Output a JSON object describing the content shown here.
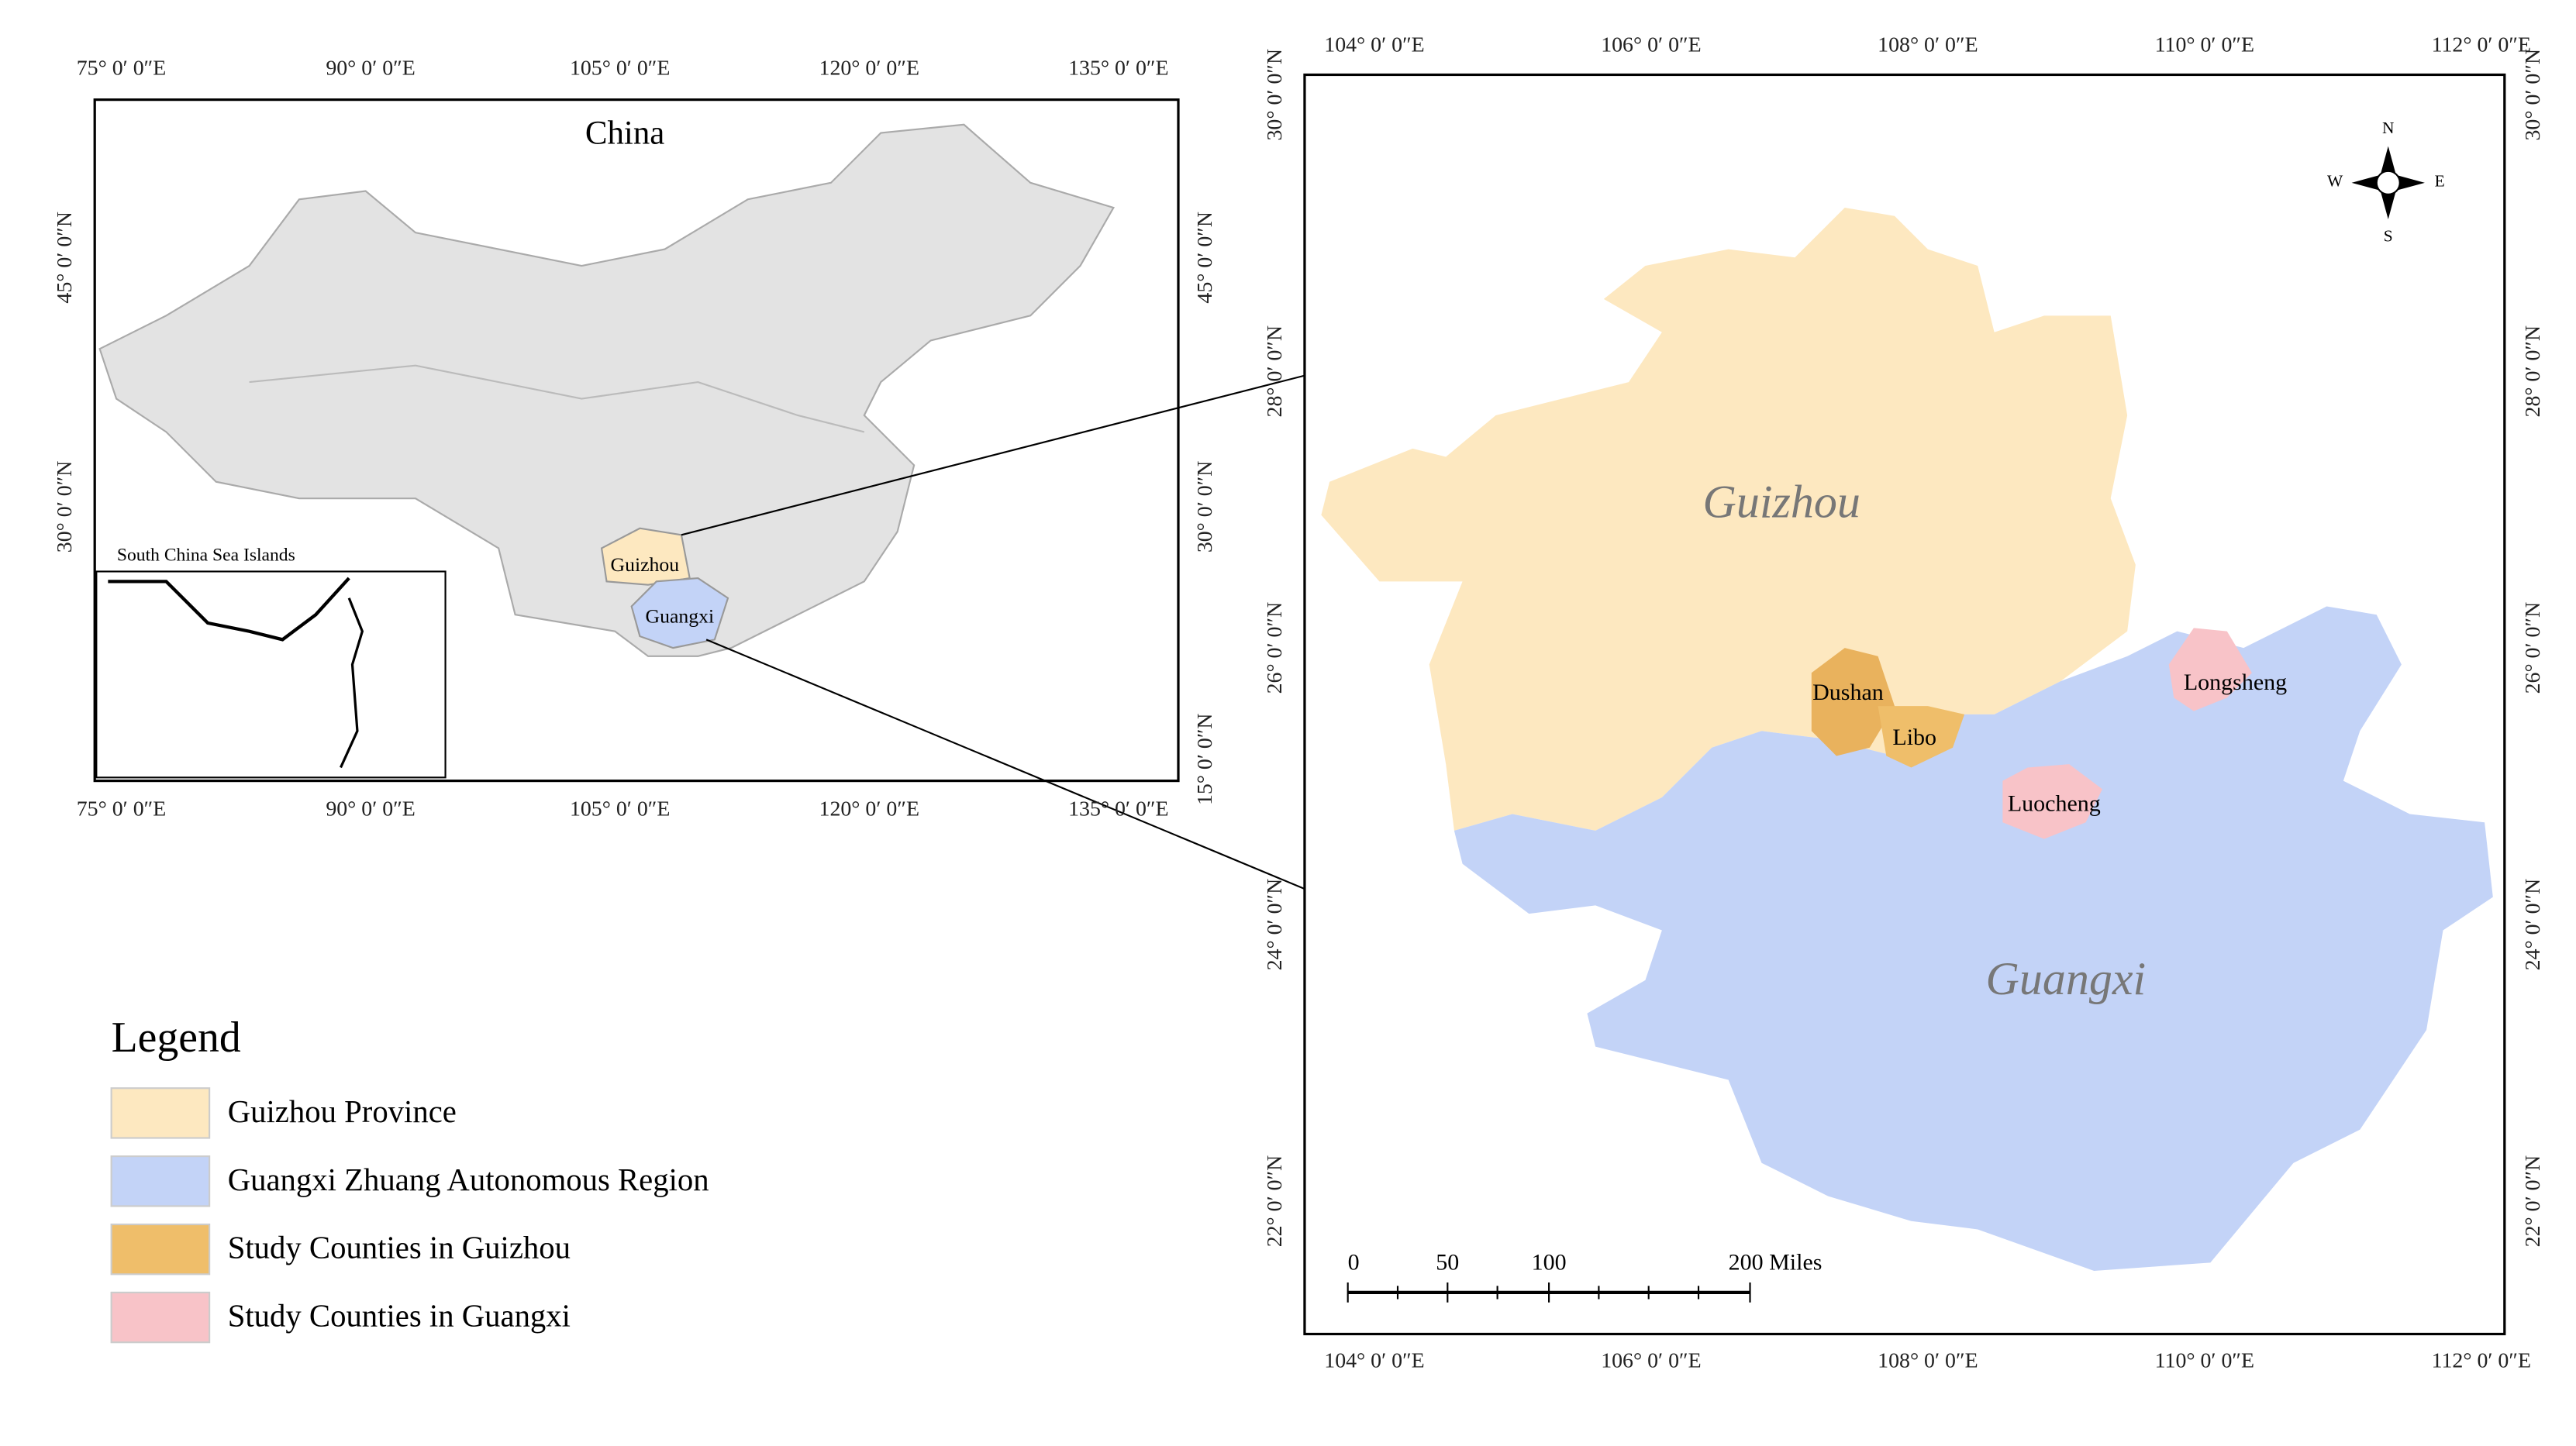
{
  "overview_map": {
    "title": "China",
    "x_tick_labels": [
      "75° 0′ 0″E",
      "90° 0′ 0″E",
      "105° 0′ 0″E",
      "120° 0′ 0″E",
      "135° 0′ 0″E"
    ],
    "y_tick_labels_left": [
      "45° 0′ 0″N",
      "30° 0′ 0″N"
    ],
    "y_tick_labels_right": [
      "45° 0′ 0″N",
      "30° 0′ 0″N",
      "15° 0′ 0″N"
    ],
    "inset_title": "South China Sea Islands",
    "labels": [
      "Guizhou",
      "Guangxi"
    ]
  },
  "detail_map": {
    "x_tick_labels": [
      "104° 0′ 0″E",
      "106° 0′ 0″E",
      "108° 0′ 0″E",
      "110° 0′ 0″E",
      "112° 0′ 0″E"
    ],
    "y_tick_labels": [
      "30° 0′ 0″N",
      "28° 0′ 0″N",
      "26° 0′ 0″N",
      "24° 0′ 0″N",
      "22° 0′ 0″N"
    ],
    "regions": [
      "Guizhou",
      "Guangxi"
    ],
    "counties": [
      "Dushan",
      "Libo",
      "Longsheng",
      "Luocheng"
    ],
    "scale_bar": [
      "0",
      "50",
      "100",
      "200 Miles"
    ],
    "compass": {
      "n": "N",
      "s": "S",
      "e": "E",
      "w": "W"
    }
  },
  "legend": {
    "title": "Legend",
    "items": [
      "Guizhou Province",
      "Guangxi Zhuang Autonomous Region",
      "Study Counties in Guizhou",
      "Study Counties in Guangxi"
    ]
  }
}
